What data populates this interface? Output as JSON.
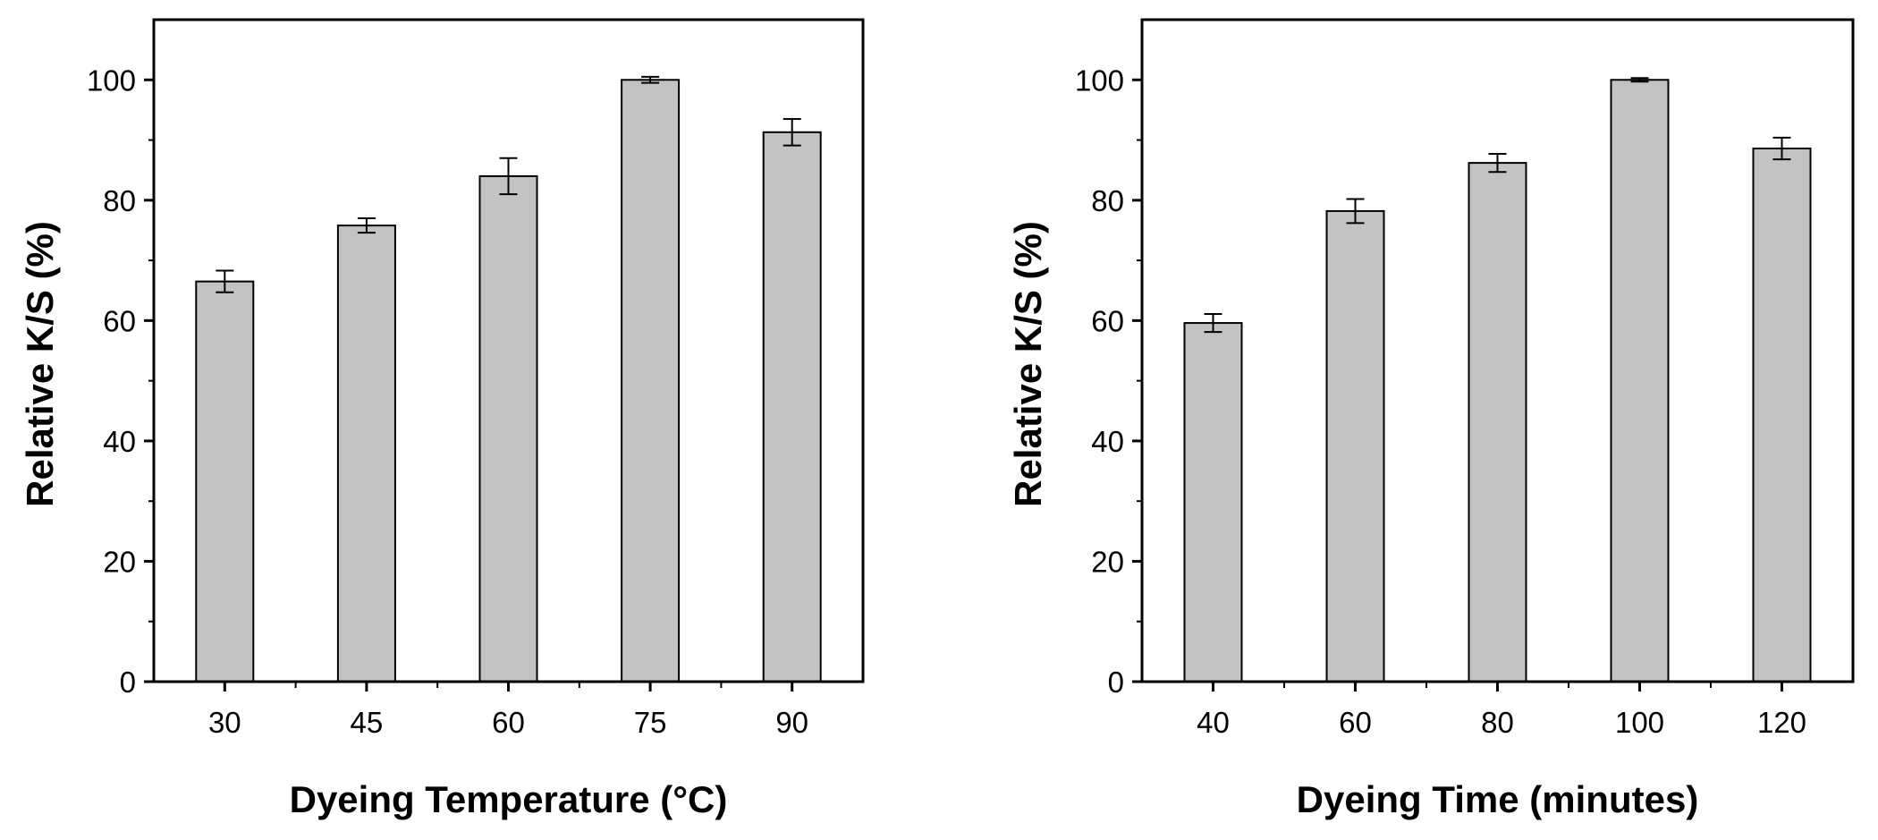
{
  "colors": {
    "bar_fill": "#c3c3c3",
    "bar_stroke": "#000000",
    "axis": "#000000",
    "background": "#ffffff"
  },
  "chart_data": [
    {
      "type": "bar",
      "title": "",
      "xlabel": "Dyeing Temperature (°C)",
      "ylabel": "Relative K/S (%)",
      "categories": [
        "30",
        "45",
        "60",
        "75",
        "90"
      ],
      "values": [
        66.5,
        75.8,
        84.0,
        100.0,
        91.3
      ],
      "errors": [
        1.8,
        1.2,
        3.0,
        0.5,
        2.2
      ],
      "ylim": [
        0,
        110
      ],
      "yticks": [
        "0",
        "20",
        "40",
        "60",
        "80",
        "100"
      ],
      "ytick_values": [
        0,
        20,
        40,
        60,
        80,
        100
      ],
      "grid": false,
      "legend": "none"
    },
    {
      "type": "bar",
      "title": "",
      "xlabel": "Dyeing Time (minutes)",
      "ylabel": "Relative K/S (%)",
      "categories": [
        "40",
        "60",
        "80",
        "100",
        "120"
      ],
      "values": [
        59.6,
        78.2,
        86.2,
        100.0,
        88.6
      ],
      "errors": [
        1.5,
        2.0,
        1.5,
        0.3,
        1.8
      ],
      "ylim": [
        0,
        110
      ],
      "yticks": [
        "0",
        "20",
        "40",
        "60",
        "80",
        "100"
      ],
      "ytick_values": [
        0,
        20,
        40,
        60,
        80,
        100
      ],
      "grid": false,
      "legend": "none"
    }
  ]
}
